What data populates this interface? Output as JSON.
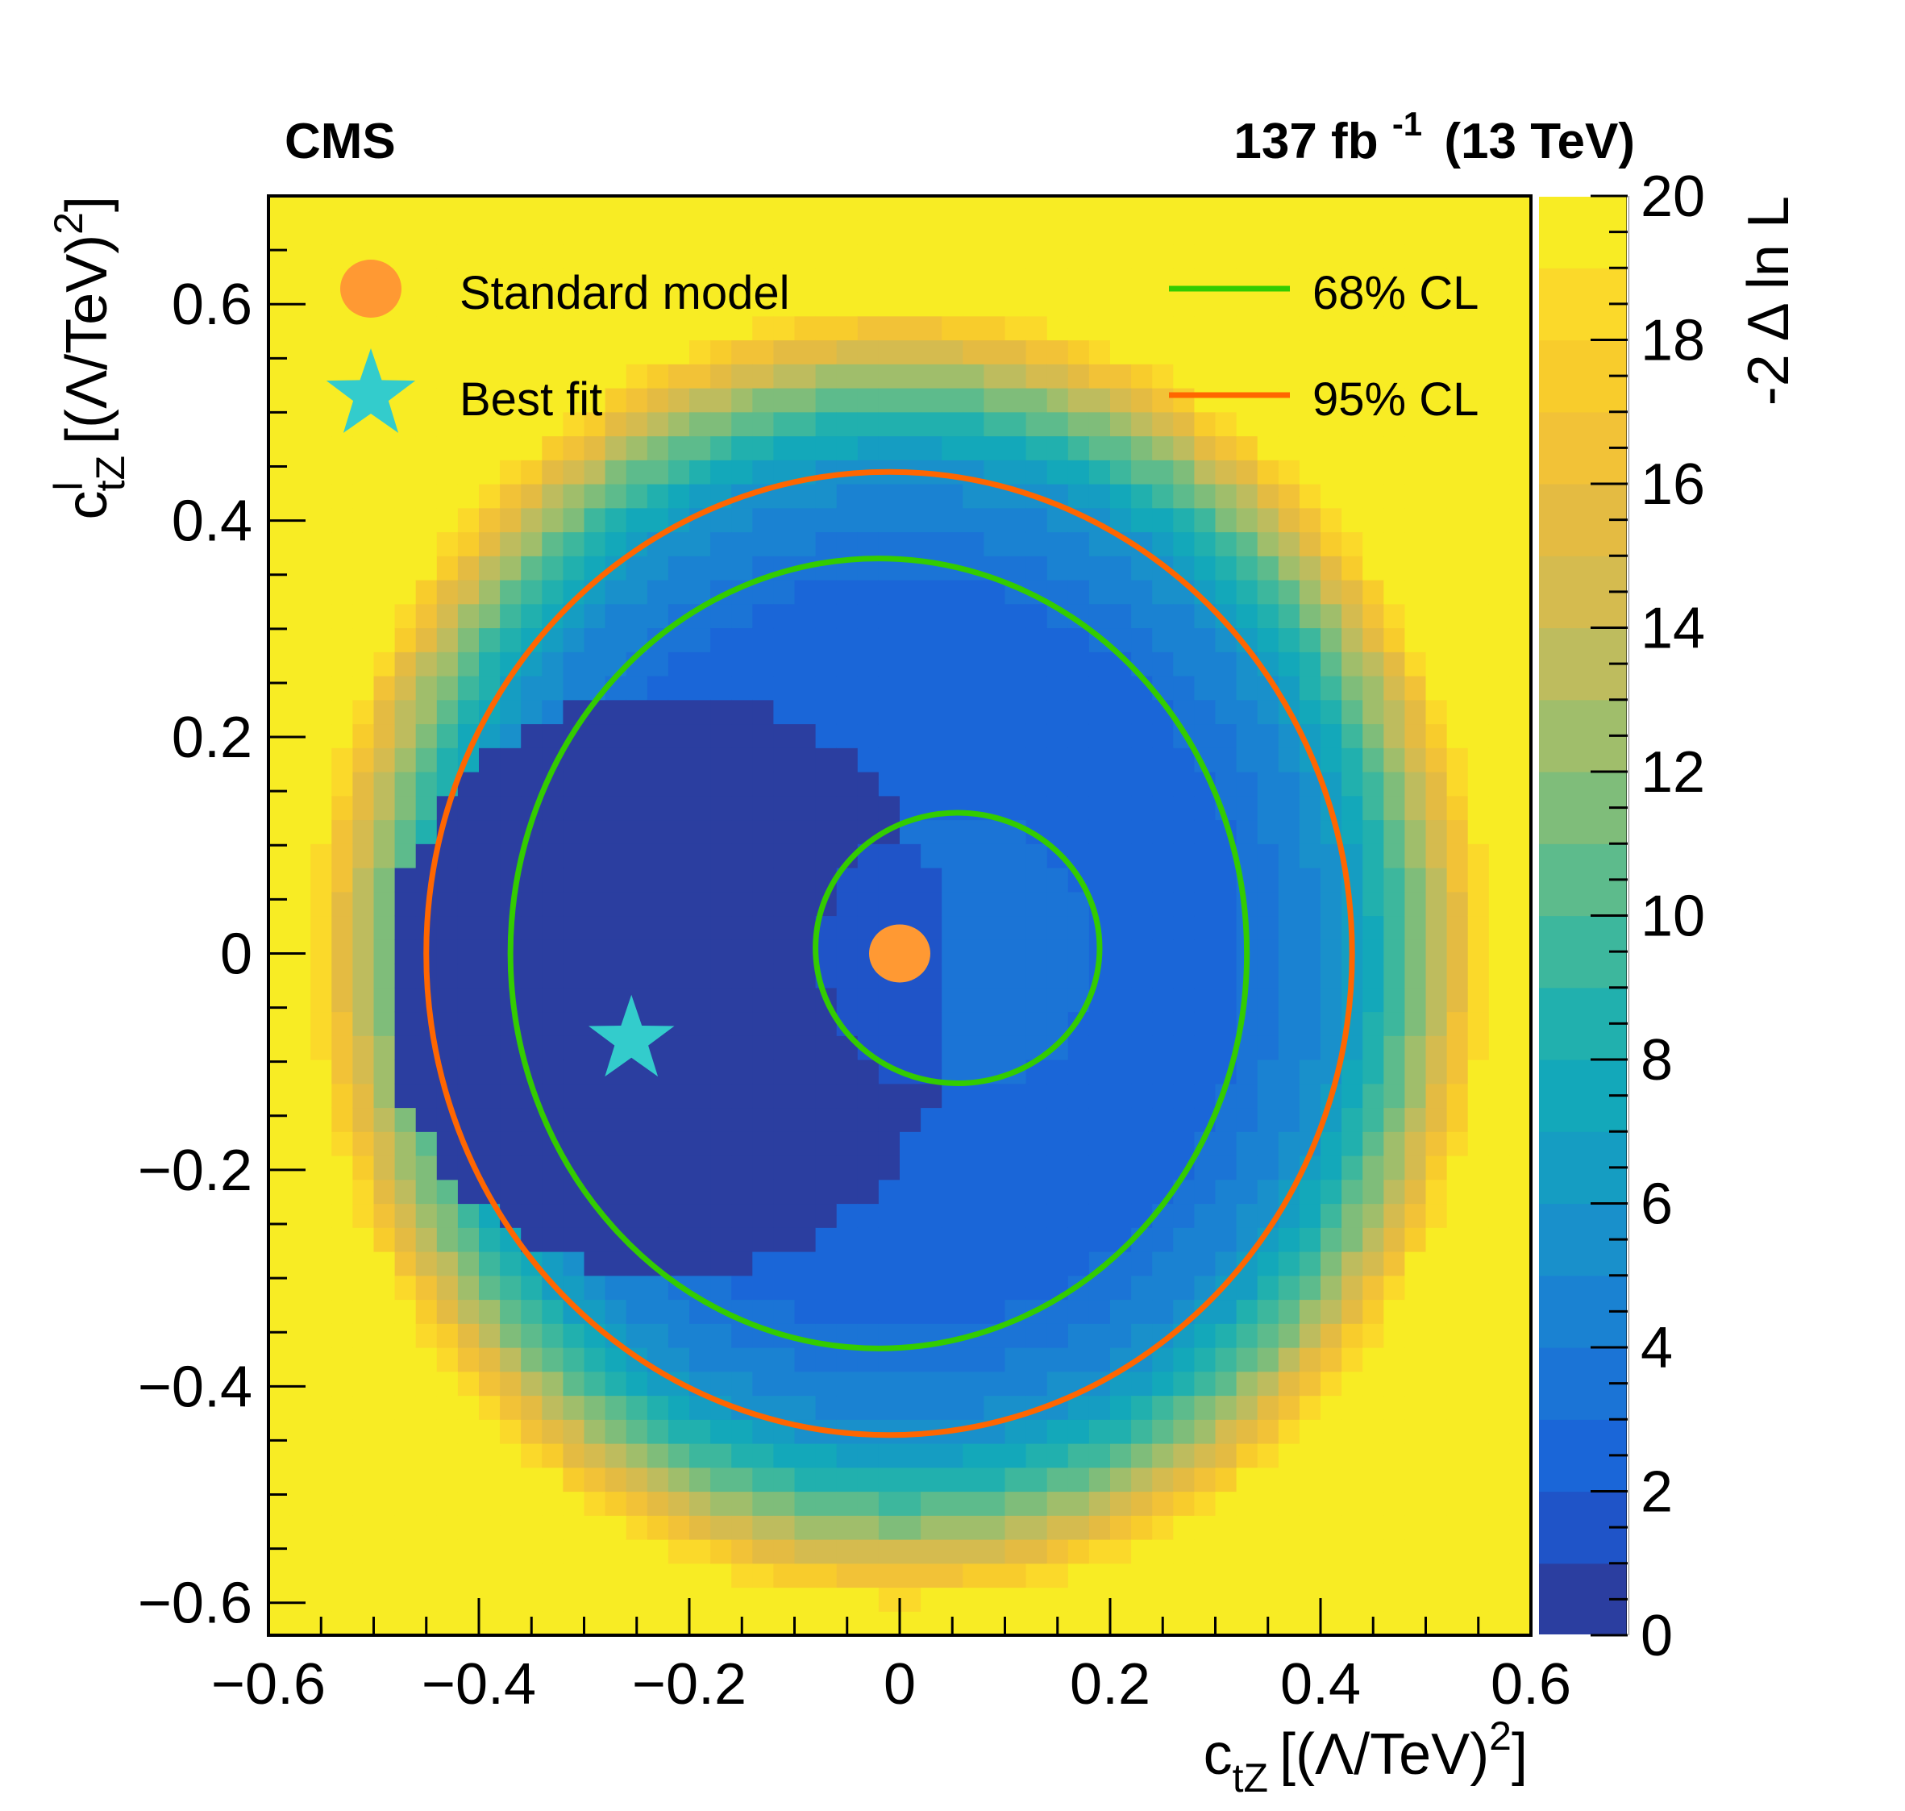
{
  "chart_data": {
    "type": "heatmap",
    "experiment": "CMS",
    "lumi_energy": "137 fb -1 (13 TeV)",
    "lumi_main": "137 fb",
    "lumi_exp": "-1",
    "lumi_tail": "(13 TeV)",
    "xlabel": {
      "main": "c",
      "sub": "tZ",
      "unit": "[(Λ/TeV)",
      "exp": "2",
      "close": "]"
    },
    "ylabel": {
      "main": "c",
      "sup": "l",
      "sub": "tZ",
      "unit": "[(Λ/TeV)",
      "exp": "2",
      "close": "]"
    },
    "zlabel": "-2 Δ ln L",
    "xlim": [
      -0.6,
      0.6
    ],
    "ylim": [
      -0.63,
      0.7
    ],
    "zlim": [
      0,
      20
    ],
    "xticks": [
      -0.6,
      -0.4,
      -0.2,
      0,
      0.2,
      0.4,
      0.6
    ],
    "xtick_labels": [
      "−0.6",
      "−0.4",
      "−0.2",
      "0",
      "0.2",
      "0.4",
      "0.6"
    ],
    "yticks": [
      -0.6,
      -0.4,
      -0.2,
      0,
      0.2,
      0.4,
      0.6
    ],
    "ytick_labels": [
      "−0.6",
      "−0.4",
      "−0.2",
      "0",
      "0.2",
      "0.4",
      "0.6"
    ],
    "zticks": [
      0,
      2,
      4,
      6,
      8,
      10,
      12,
      14,
      16,
      18,
      20
    ],
    "ztick_labels": [
      "0",
      "2",
      "4",
      "6",
      "8",
      "10",
      "12",
      "14",
      "16",
      "18",
      "20"
    ],
    "palette": [
      "#2b3ea0",
      "#1f54c8",
      "#1a66d8",
      "#1b74d6",
      "#1a82d2",
      "#1990cb",
      "#159dc2",
      "#13a8ba",
      "#21b0ae",
      "#3db79d",
      "#5dbb8c",
      "#7fbd7a",
      "#a0be6b",
      "#bebc5e",
      "#d5bb4f",
      "#e4bb42",
      "#f2c237",
      "#f8cc2c",
      "#fbd92a",
      "#f8ec24"
    ],
    "grid": {
      "nx": 60,
      "ny": 60,
      "x0": -0.6,
      "x1": 0.6,
      "y0": -0.63,
      "y1": 0.7
    },
    "model": {
      "outer_radius_x": 0.57,
      "outer_radius_y": 0.61,
      "crescent_center": [
        -0.22,
        -0.03
      ],
      "crescent_radius": 0.27
    },
    "contours": [
      {
        "level": "68% CL",
        "color": "#33cc00",
        "ellipses": [
          {
            "cx": -0.02,
            "cy": 0.0,
            "rx": 0.35,
            "ry": 0.365
          },
          {
            "cx": 0.055,
            "cy": 0.005,
            "rx": 0.135,
            "ry": 0.125
          }
        ]
      },
      {
        "level": "95% CL",
        "color": "#ff6600",
        "ellipses": [
          {
            "cx": -0.01,
            "cy": 0.0,
            "rx": 0.44,
            "ry": 0.445
          }
        ]
      }
    ],
    "points": [
      {
        "name": "Standard model",
        "x": 0.0,
        "y": 0.0,
        "color": "#ff9933",
        "marker": "circle"
      },
      {
        "name": "Best fit",
        "x": -0.255,
        "y": -0.08,
        "color": "#33cccc",
        "marker": "star"
      }
    ],
    "legend": [
      {
        "label": "Standard model",
        "marker": "circle",
        "color": "#ff9933"
      },
      {
        "label": "Best fit",
        "marker": "star",
        "color": "#33cccc"
      },
      {
        "label": "68% CL",
        "marker": "line",
        "color": "#33cc00"
      },
      {
        "label": "95% CL",
        "marker": "line",
        "color": "#ff6600"
      }
    ],
    "background_color": "#f8f518"
  }
}
